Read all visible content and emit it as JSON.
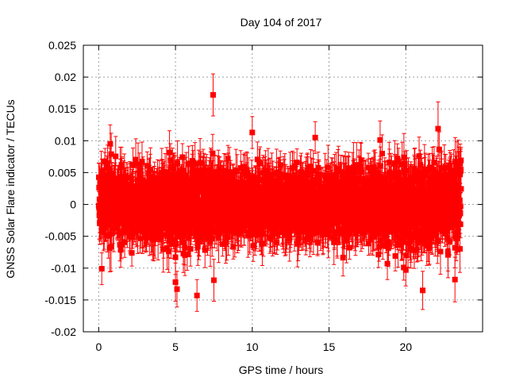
{
  "chart_data": {
    "type": "scatter",
    "title": "Day 104 of 2017",
    "xlabel": "GPS time / hours",
    "ylabel": "GNSS Solar Flare indicator / TECUs",
    "xlim": [
      -1,
      25
    ],
    "ylim": [
      -0.02,
      0.025
    ],
    "x_ticks": [
      0,
      5,
      10,
      15,
      20
    ],
    "x_tick_labels": [
      "0",
      "5",
      "10",
      "15",
      "20"
    ],
    "y_ticks": [
      -0.02,
      -0.015,
      -0.01,
      -0.005,
      0,
      0.005,
      0.01,
      0.015,
      0.02,
      0.025
    ],
    "y_tick_labels": [
      "-0.02",
      "-0.015",
      "-0.01",
      "-0.005",
      "0",
      "0.005",
      "0.01",
      "0.015",
      "0.02",
      "0.025"
    ],
    "grid": true,
    "series_color": "#ff0000",
    "marker": "square",
    "error_bars": true,
    "series": [
      {
        "name": "Solar flare indicator",
        "sampling_interval_hours": 0.00833,
        "x_range": [
          0,
          23.6
        ],
        "typical_abs_value": 0.005,
        "typical_error": 0.003,
        "notable_points": [
          {
            "x": 7.45,
            "y": 0.0172,
            "err": 0.0033
          },
          {
            "x": 10.0,
            "y": 0.0113,
            "err": 0.0025
          },
          {
            "x": 22.1,
            "y": 0.0119,
            "err": 0.0042
          },
          {
            "x": 0.75,
            "y": 0.0095,
            "err": 0.003
          },
          {
            "x": 14.1,
            "y": 0.0105,
            "err": 0.0025
          },
          {
            "x": 5.0,
            "y": -0.0122,
            "err": 0.003
          },
          {
            "x": 5.1,
            "y": -0.0133,
            "err": 0.0028
          },
          {
            "x": 6.4,
            "y": -0.0143,
            "err": 0.0025
          },
          {
            "x": 7.5,
            "y": -0.0119,
            "err": 0.0033
          },
          {
            "x": 21.1,
            "y": -0.0135,
            "err": 0.003
          },
          {
            "x": 23.2,
            "y": -0.0118,
            "err": 0.0035
          },
          {
            "x": 0.2,
            "y": -0.0101,
            "err": 0.0025
          },
          {
            "x": 18.8,
            "y": -0.0093,
            "err": 0.0025
          },
          {
            "x": 20.0,
            "y": -0.0103,
            "err": 0.0025
          }
        ]
      }
    ]
  }
}
